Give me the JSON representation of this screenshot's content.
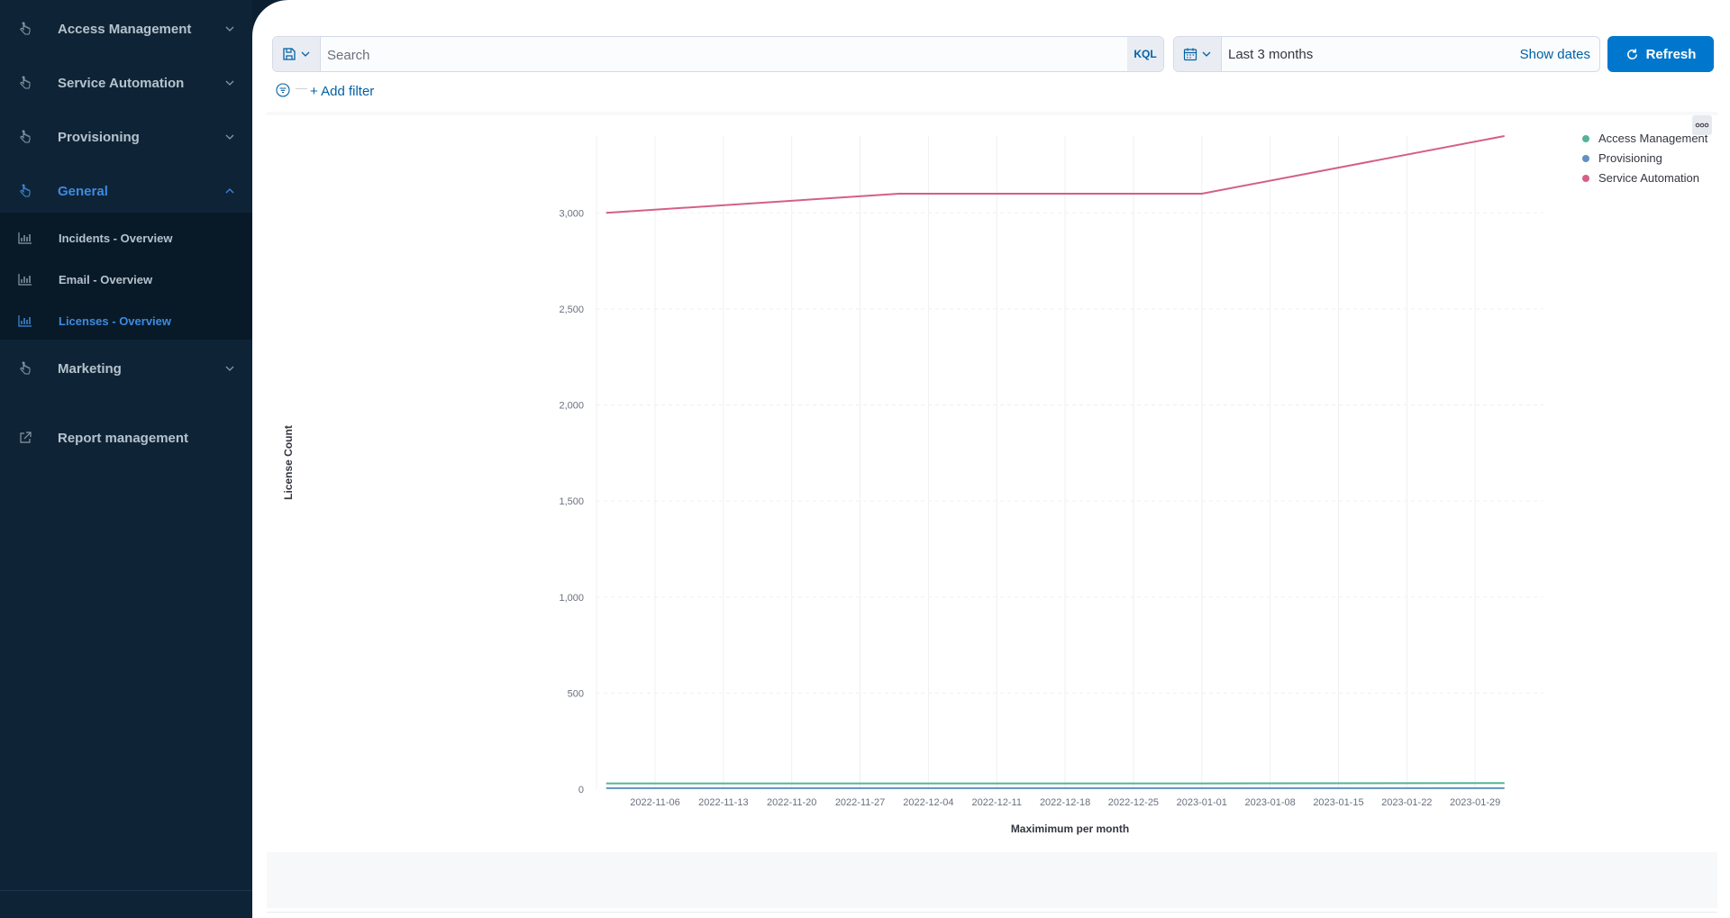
{
  "sidebar": {
    "items": [
      {
        "label": "Access Management",
        "icon": "hand-pointer-icon",
        "expanded": false
      },
      {
        "label": "Service Automation",
        "icon": "hand-pointer-icon",
        "expanded": false
      },
      {
        "label": "Provisioning",
        "icon": "hand-pointer-icon",
        "expanded": false
      },
      {
        "label": "General",
        "icon": "hand-pointer-icon",
        "expanded": true,
        "active": true
      },
      {
        "label": "Marketing",
        "icon": "hand-pointer-icon",
        "expanded": false
      },
      {
        "label": "Report management",
        "icon": "external-link-icon"
      }
    ],
    "submenu": [
      {
        "label": "Incidents - Overview",
        "icon": "bar-chart-icon"
      },
      {
        "label": "Email - Overview",
        "icon": "bar-chart-icon"
      },
      {
        "label": "Licenses - Overview",
        "icon": "bar-chart-icon",
        "active": true
      }
    ]
  },
  "query_bar": {
    "search_placeholder": "Search",
    "language": "KQL",
    "date_range": "Last 3 months",
    "show_dates": "Show dates",
    "refresh": "Refresh",
    "add_filter": "+ Add filter"
  },
  "colors": {
    "accent": "#0077cc",
    "access_management": "#54b399",
    "provisioning": "#6092c0",
    "service_automation": "#d36086"
  },
  "chart_data": {
    "type": "line",
    "xlabel": "Maximimum per month",
    "ylabel": "License Count",
    "ylim": [
      0,
      3400
    ],
    "yticks": [
      0,
      500,
      1000,
      1500,
      2000,
      2500,
      3000
    ],
    "ytick_labels": [
      "0",
      "500",
      "1,000",
      "1,500",
      "2,000",
      "2,500",
      "3,000"
    ],
    "xlim": [
      "2022-10-31",
      "2023-02-05"
    ],
    "xticks": [
      "2022-11-06",
      "2022-11-13",
      "2022-11-20",
      "2022-11-27",
      "2022-12-04",
      "2022-12-11",
      "2022-12-18",
      "2022-12-25",
      "2023-01-01",
      "2023-01-08",
      "2023-01-15",
      "2023-01-22",
      "2023-01-29"
    ],
    "grid": true,
    "legend_position": "top-right",
    "series": [
      {
        "name": "Access Management",
        "color": "#54b399",
        "points": [
          [
            "2022-11-01",
            30
          ],
          [
            "2022-12-01",
            30
          ],
          [
            "2023-01-01",
            30
          ],
          [
            "2023-02-01",
            32
          ]
        ]
      },
      {
        "name": "Provisioning",
        "color": "#6092c0",
        "points": [
          [
            "2022-11-01",
            5
          ],
          [
            "2022-12-01",
            5
          ],
          [
            "2023-01-01",
            5
          ],
          [
            "2023-02-01",
            5
          ]
        ]
      },
      {
        "name": "Service Automation",
        "color": "#d36086",
        "points": [
          [
            "2022-11-01",
            3000
          ],
          [
            "2022-12-01",
            3100
          ],
          [
            "2023-01-01",
            3100
          ],
          [
            "2023-02-01",
            3400
          ]
        ]
      }
    ]
  }
}
